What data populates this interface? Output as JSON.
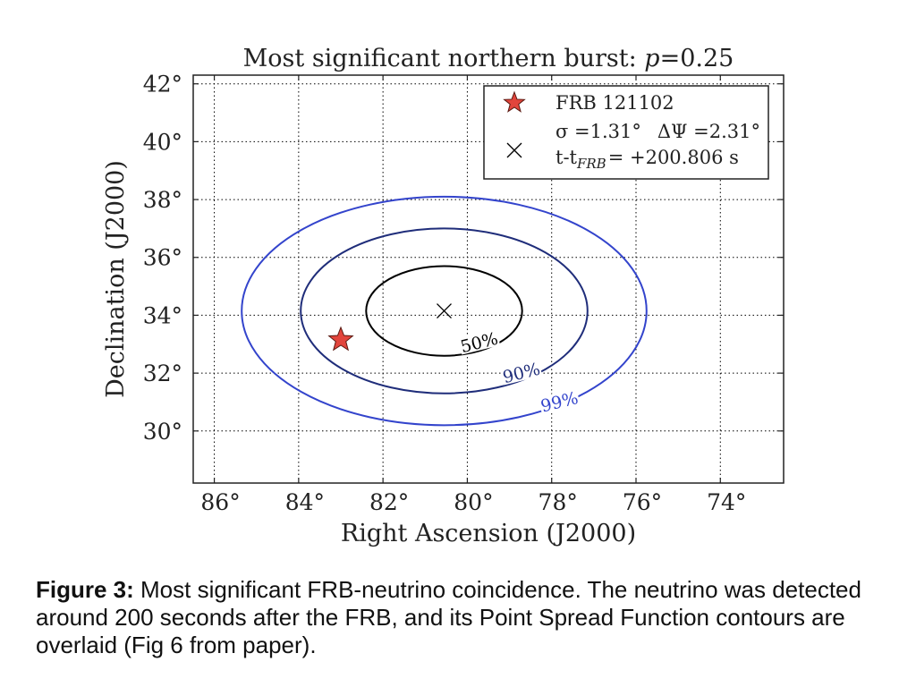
{
  "chart_data": {
    "type": "scatter",
    "title_main": "Most significant northern burst: ",
    "title_p": "p",
    "title_p_value": "=0.25",
    "xlabel": "Right Ascension (J2000)",
    "ylabel": "Declination (J2000)",
    "xlim": [
      86.5,
      72.5
    ],
    "ylim": [
      28.2,
      42.3
    ],
    "x_ticks": [
      86,
      84,
      82,
      80,
      78,
      76,
      74
    ],
    "y_ticks": [
      30,
      32,
      34,
      36,
      38,
      40,
      42
    ],
    "grid": true,
    "legend_placement": "top-right",
    "frb": {
      "name": "FRB 121102",
      "ra": 83.0,
      "dec": 33.15,
      "marker": "star",
      "color": "#e2453c"
    },
    "neutrino": {
      "ra": 80.55,
      "dec": 34.15,
      "marker": "x",
      "label_sigma": "σ =1.31°",
      "label_dpsi": "ΔΨ =2.31°",
      "label_dt_prefix": "t-t",
      "label_dt_sub": "FRB",
      "label_dt_value": "= +200.806 s"
    },
    "contours": [
      {
        "label": "50%",
        "center_ra": 80.55,
        "center_dec": 34.15,
        "half_width_ra": 1.85,
        "half_height_dec": 1.55,
        "color": "#000000",
        "label_ra": 79.7,
        "label_dec": 32.95,
        "label_angle": -14
      },
      {
        "label": "90%",
        "center_ra": 80.55,
        "center_dec": 34.15,
        "half_width_ra": 3.4,
        "half_height_dec": 2.85,
        "color": "#1f2d7a",
        "label_ra": 78.7,
        "label_dec": 31.9,
        "label_angle": -14
      },
      {
        "label": "99%",
        "center_ra": 80.55,
        "center_dec": 34.15,
        "half_width_ra": 4.8,
        "half_height_dec": 3.95,
        "color": "#3344cc",
        "label_ra": 77.8,
        "label_dec": 30.9,
        "label_angle": -14
      }
    ]
  },
  "caption": {
    "label": "Figure 3:",
    "text": " Most significant FRB-neutrino coincidence. The neutrino was detected around 200 seconds after the FRB, and its Point Spread Function contours are overlaid (Fig 6 from paper)."
  }
}
